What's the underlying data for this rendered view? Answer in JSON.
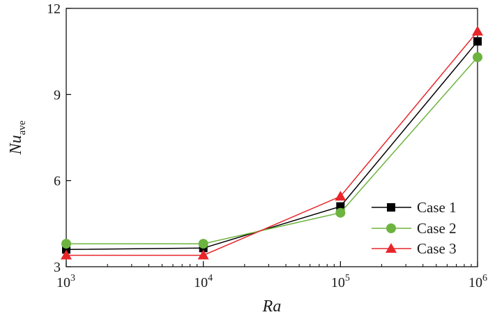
{
  "chart_data": {
    "type": "line",
    "xscale": "log",
    "x": [
      1000,
      10000,
      100000,
      1000000
    ],
    "xlim": [
      1000,
      1000000
    ],
    "ylim": [
      3,
      12
    ],
    "x_ticks": [
      {
        "base": "10",
        "exp": "3"
      },
      {
        "base": "10",
        "exp": "4"
      },
      {
        "base": "10",
        "exp": "5"
      },
      {
        "base": "10",
        "exp": "6"
      }
    ],
    "y_ticks": [
      {
        "value": 3,
        "label": "3"
      },
      {
        "value": 6,
        "label": "6"
      },
      {
        "value": 9,
        "label": "9"
      },
      {
        "value": 12,
        "label": "12"
      }
    ],
    "xlabel": "Ra",
    "ylabel": {
      "main": "Nu",
      "sub": "ave"
    },
    "legend_position": "bottom-right",
    "grid": false,
    "series": [
      {
        "name": "Case 1",
        "color": "#000000",
        "marker": "square",
        "values": [
          3.6,
          3.65,
          5.1,
          10.85
        ]
      },
      {
        "name": "Case 2",
        "color": "#6db33f",
        "marker": "circle",
        "values": [
          3.8,
          3.8,
          4.88,
          10.3
        ]
      },
      {
        "name": "Case 3",
        "color": "#e8262a",
        "marker": "triangle",
        "values": [
          3.4,
          3.4,
          5.45,
          11.2
        ]
      }
    ]
  }
}
